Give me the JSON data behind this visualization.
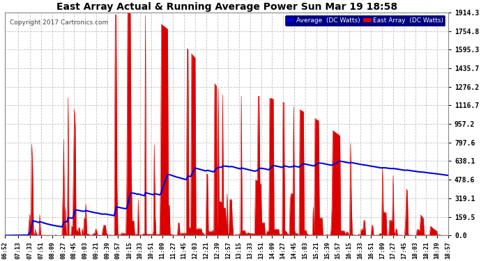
{
  "title": "East Array Actual & Running Average Power Sun Mar 19 18:58",
  "copyright": "Copyright 2017 Cartronics.com",
  "yticks": [
    0.0,
    159.5,
    319.1,
    478.6,
    638.1,
    797.6,
    957.2,
    1116.7,
    1276.2,
    1435.7,
    1595.3,
    1754.8,
    1914.3
  ],
  "ymax": 1914.3,
  "legend_avg_label": "Average  (DC Watts)",
  "legend_east_label": "East Array  (DC Watts)",
  "bg_color": "#ffffff",
  "grid_color": "#bbbbbb",
  "bar_color": "#dd0000",
  "avg_line_color": "#0000dd",
  "title_color": "#000000",
  "copyright_color": "#444444",
  "figwidth": 6.9,
  "figheight": 3.75,
  "dpi": 100,
  "xtick_labels": [
    "06:52",
    "07:13",
    "07:33",
    "07:51",
    "08:09",
    "08:27",
    "08:45",
    "09:03",
    "09:21",
    "09:39",
    "09:57",
    "10:15",
    "10:33",
    "10:51",
    "11:09",
    "11:27",
    "11:45",
    "12:03",
    "12:21",
    "12:39",
    "12:57",
    "13:15",
    "13:33",
    "13:51",
    "14:09",
    "14:27",
    "14:45",
    "15:03",
    "15:21",
    "15:39",
    "15:57",
    "16:15",
    "16:33",
    "16:51",
    "17:09",
    "17:27",
    "17:45",
    "18:03",
    "18:21",
    "18:39",
    "18:57"
  ]
}
